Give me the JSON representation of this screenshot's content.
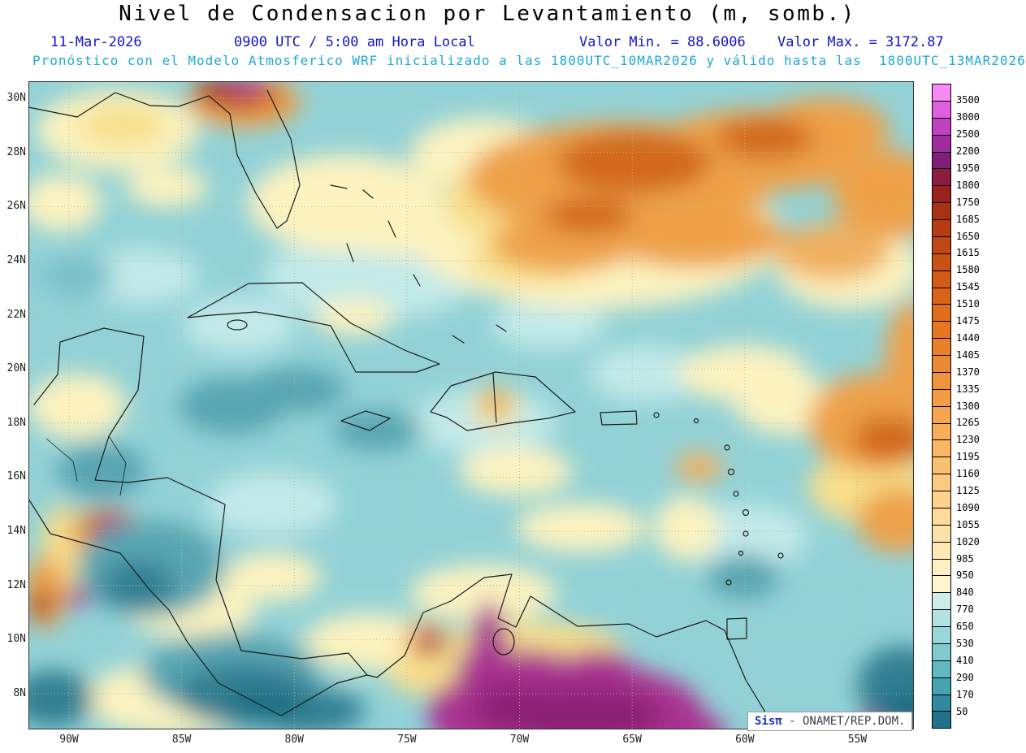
{
  "header": {
    "title": "Nivel de Condensacion por Levantamiento (m, somb.)",
    "date": "11-Mar-2026",
    "time": "0900 UTC / 5:00 am Hora Local",
    "min_label": "Valor Min. = 88.6006",
    "max_label": "Valor Max. = 3172.87",
    "forecast_line": "Pronóstico con el Modelo Atmosferico WRF inicializado a las 1800UTC_10MAR2026 y válido hasta las  1800UTC_13MAR2026"
  },
  "stats": {
    "min": 88.6006,
    "max": 3172.87,
    "units": "m"
  },
  "map": {
    "lat_labels": [
      "30N",
      "28N",
      "26N",
      "24N",
      "22N",
      "20N",
      "18N",
      "16N",
      "14N",
      "12N",
      "10N",
      "8N"
    ],
    "lon_labels": [
      "90W",
      "85W",
      "80W",
      "75W",
      "70W",
      "65W",
      "60W",
      "55W"
    ]
  },
  "colorbar": {
    "values": [
      "3500",
      "3000",
      "2500",
      "2200",
      "1950",
      "1800",
      "1750",
      "1685",
      "1650",
      "1615",
      "1580",
      "1545",
      "1510",
      "1475",
      "1440",
      "1405",
      "1370",
      "1335",
      "1300",
      "1265",
      "1230",
      "1195",
      "1160",
      "1125",
      "1090",
      "1055",
      "1020",
      "985",
      "950",
      "840",
      "770",
      "650",
      "530",
      "410",
      "290",
      "170",
      "50"
    ],
    "colors": [
      "#f98af5",
      "#e05fe0",
      "#bf41bf",
      "#9e2c9c",
      "#7f1f7a",
      "#8c1c40",
      "#9a221c",
      "#a93114",
      "#b53c10",
      "#c04712",
      "#c95114",
      "#d15b16",
      "#d86419",
      "#de6e1d",
      "#e37722",
      "#e88029",
      "#ec8a31",
      "#f0933a",
      "#f39c44",
      "#f5a54f",
      "#f7ae5a",
      "#f9b766",
      "#fac072",
      "#fbc97f",
      "#fcd28c",
      "#fdda99",
      "#fde2a7",
      "#fee9b5",
      "#feefc2",
      "#fef5d0",
      "#cdeceb",
      "#b4e2e2",
      "#9ad7da",
      "#7fc9cf",
      "#63b7c2",
      "#47a2b2",
      "#2f89a0",
      "#20718a"
    ]
  },
  "watermark": {
    "brand": "Sisπ",
    "suffix": " - ONAMET/REP.DOM."
  }
}
